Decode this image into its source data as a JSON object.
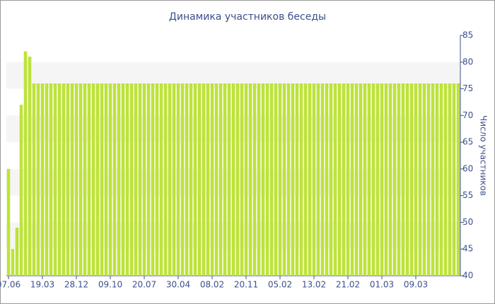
{
  "chart_data": {
    "type": "bar",
    "title": "Динамика участников беседы",
    "y_axis_label": "Число участников",
    "categories": [
      "07.06",
      null,
      null,
      null,
      null,
      null,
      null,
      null,
      "19.03",
      null,
      null,
      null,
      null,
      null,
      null,
      null,
      "28.12",
      null,
      null,
      null,
      null,
      null,
      null,
      null,
      "09.10",
      null,
      null,
      null,
      null,
      null,
      null,
      null,
      "20.07",
      null,
      null,
      null,
      null,
      null,
      null,
      null,
      "30.04",
      null,
      null,
      null,
      null,
      null,
      null,
      null,
      "08.02",
      null,
      null,
      null,
      null,
      null,
      null,
      null,
      "20.11",
      null,
      null,
      null,
      null,
      null,
      null,
      null,
      "05.02",
      null,
      null,
      null,
      null,
      null,
      null,
      null,
      "13.02",
      null,
      null,
      null,
      null,
      null,
      null,
      null,
      "21.02",
      null,
      null,
      null,
      null,
      null,
      null,
      null,
      "01.03",
      null,
      null,
      null,
      null,
      null,
      null,
      null,
      "09.03",
      null,
      null,
      null,
      null,
      null,
      null,
      null,
      null,
      null,
      null
    ],
    "values": [
      60,
      45,
      49,
      72,
      82,
      81,
      76,
      76,
      76,
      76,
      76,
      76,
      76,
      76,
      76,
      76,
      76,
      76,
      76,
      76,
      76,
      76,
      76,
      76,
      76,
      76,
      76,
      76,
      76,
      76,
      76,
      76,
      76,
      76,
      76,
      76,
      76,
      76,
      76,
      76,
      76,
      76,
      76,
      76,
      76,
      76,
      76,
      76,
      76,
      76,
      76,
      76,
      76,
      76,
      76,
      76,
      76,
      76,
      76,
      76,
      76,
      76,
      76,
      76,
      76,
      76,
      76,
      76,
      76,
      76,
      76,
      76,
      76,
      76,
      76,
      76,
      76,
      76,
      76,
      76,
      76,
      76,
      76,
      76,
      76,
      76,
      76,
      76,
      76,
      76,
      76,
      76,
      76,
      76,
      76,
      76,
      76,
      76,
      76,
      76,
      76,
      76,
      76,
      76,
      76,
      76,
      76
    ],
    "color": "#bde33a",
    "ylim": [
      40,
      85
    ],
    "yticks": [
      40,
      45,
      50,
      55,
      60,
      65,
      70,
      75,
      80,
      85
    ],
    "y_axis_side": "right",
    "grid_bands": true
  }
}
